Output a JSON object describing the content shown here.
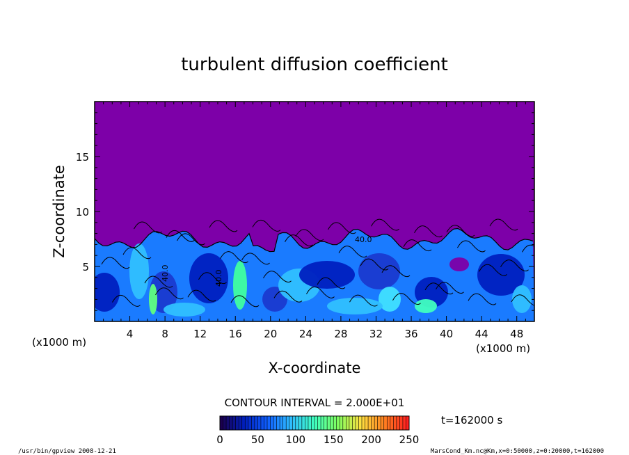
{
  "chart_data": {
    "type": "heatmap",
    "title": "turbulent diffusion coefficient",
    "xlabel": "X-coordinate",
    "ylabel": "Z-coordinate",
    "x_unit": "(x1000 m)",
    "y_unit": "(x1000 m)",
    "xlim": [
      0,
      50
    ],
    "ylim": [
      0,
      20
    ],
    "x_ticks": [
      4,
      8,
      12,
      16,
      20,
      24,
      28,
      32,
      36,
      40,
      44,
      48
    ],
    "y_ticks": [
      5,
      10,
      15
    ],
    "contour_interval_label": "CONTOUR INTERVAL = 2.000E+01",
    "contour_labels": [
      "40.0",
      "40.0",
      "40.0"
    ],
    "colorbar": {
      "min": 0,
      "max": 250,
      "ticks": [
        0,
        50,
        100,
        150,
        200,
        250
      ],
      "colors": [
        "#1a0050",
        "#0020c0",
        "#1060ff",
        "#30c0ff",
        "#40ffc0",
        "#80ff60",
        "#ffe040",
        "#ff8020",
        "#ff2020"
      ]
    },
    "background_color": "#7d00a8",
    "turbulent_layer_top": 8,
    "time_label": "t=162000  s",
    "footer_left": "/usr/bin/gpview  2008-12-21",
    "footer_right": "MarsCond_Km.nc@Km,x=0:50000,z=0:20000,t=162000"
  }
}
